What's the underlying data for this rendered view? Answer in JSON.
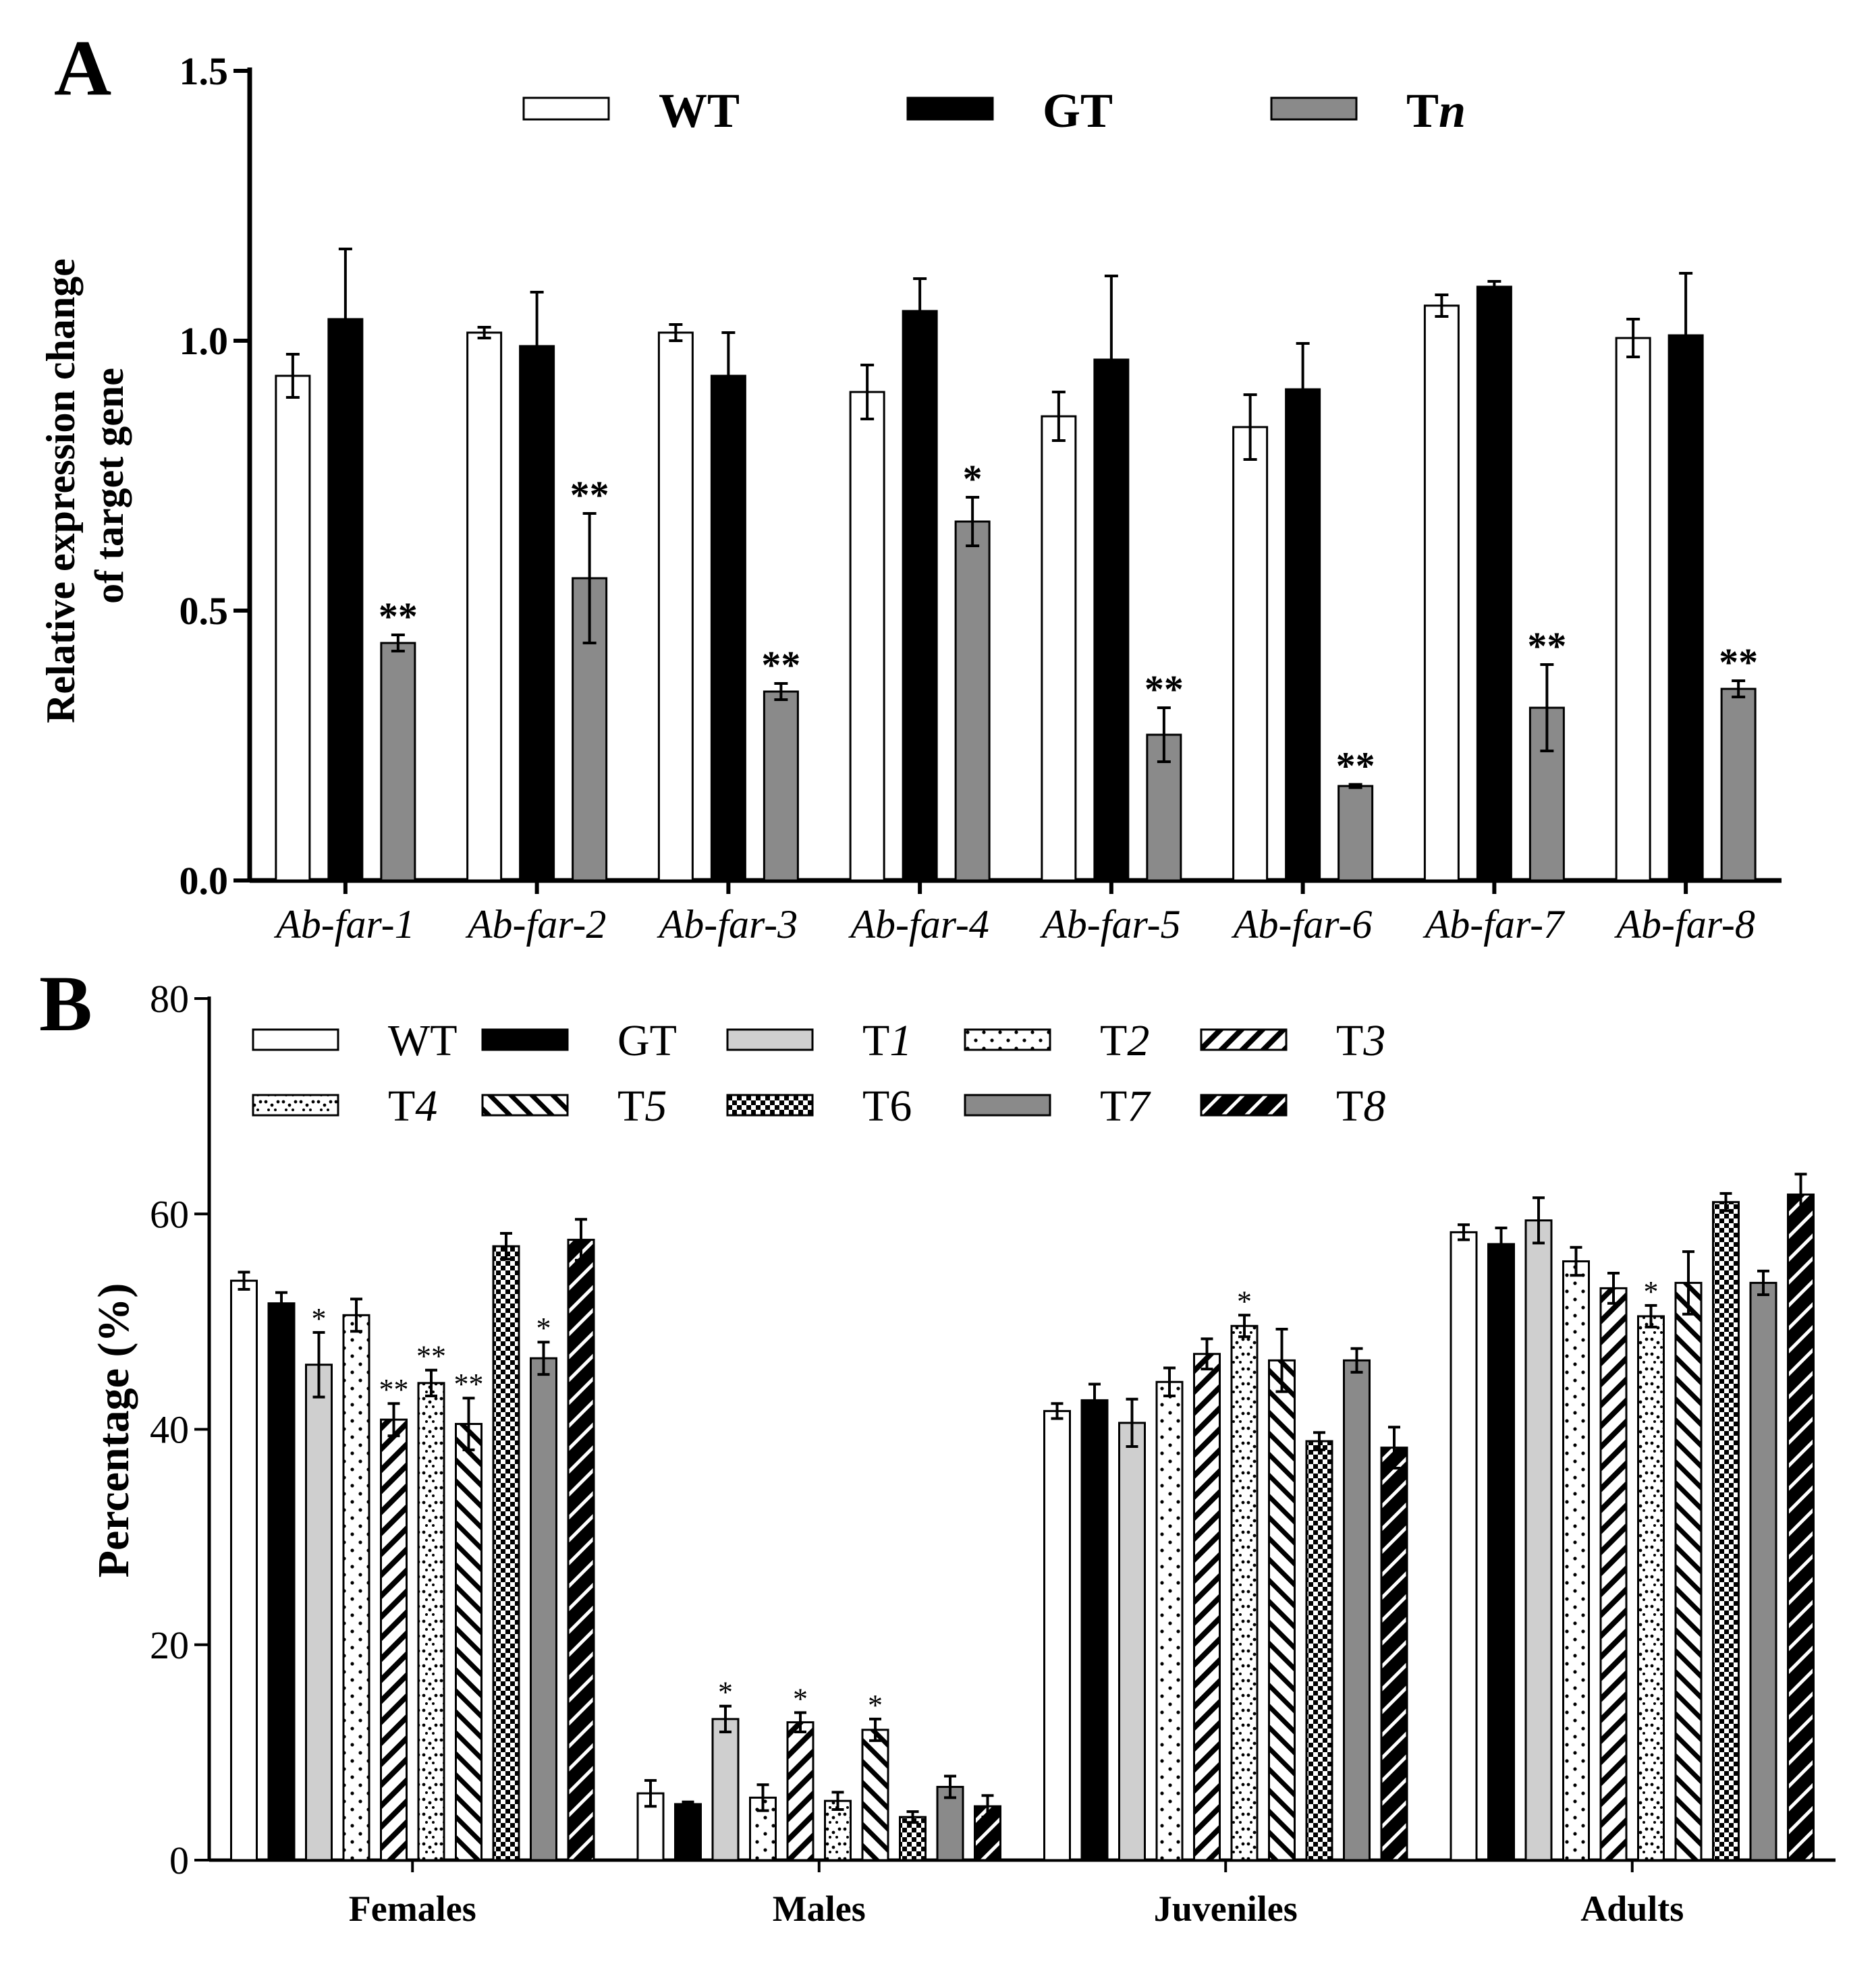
{
  "panel_a": {
    "label": "A",
    "legend": [
      {
        "name": "WT",
        "fill": "white"
      },
      {
        "name": "GT",
        "fill": "black"
      },
      {
        "name_main": "T",
        "name_italic": "n",
        "fill": "gray"
      }
    ]
  },
  "panel_b": {
    "label": "B",
    "legend": [
      {
        "name_main": "WT",
        "name_italic": "",
        "fill": "white"
      },
      {
        "name_main": "GT",
        "name_italic": "",
        "fill": "black"
      },
      {
        "name_main": "T",
        "name_italic": "1",
        "fill": "lightgray"
      },
      {
        "name_main": "T",
        "name_italic": "2",
        "fill": "dots"
      },
      {
        "name_main": "T",
        "name_italic": "3",
        "fill": "hatch-right"
      },
      {
        "name_main": "T",
        "name_italic": "4",
        "fill": "wave-dots"
      },
      {
        "name_main": "T",
        "name_italic": "5",
        "fill": "hatch-left"
      },
      {
        "name_main": "T6",
        "name_italic": "",
        "fill": "checker"
      },
      {
        "name_main": "T",
        "name_italic": "7",
        "fill": "gray"
      },
      {
        "name_main": "T",
        "name_italic": "8",
        "fill": "black-hatch"
      }
    ]
  },
  "colors": {
    "white": "#ffffff",
    "black": "#000000",
    "gray": "#8a8a8a",
    "lightgray": "#cfcfcf"
  },
  "chart_data": [
    {
      "type": "bar",
      "panel": "A",
      "title": "",
      "ylabel_line1": "Relative expression change",
      "ylabel_line2": "of  target gene",
      "xlabel": "",
      "ylim": [
        0,
        1.5
      ],
      "yticks": [
        "0.0",
        "0.5",
        "1.0",
        "1.5"
      ],
      "categories": [
        "Ab-far-1",
        "Ab-far-2",
        "Ab-far-3",
        "Ab-far-4",
        "Ab-far-5",
        "Ab-far-6",
        "Ab-far-7",
        "Ab-far-8"
      ],
      "series": [
        {
          "name": "WT",
          "values": [
            0.935,
            1.015,
            1.015,
            0.905,
            0.86,
            0.84,
            1.065,
            1.005
          ],
          "errors": [
            0.04,
            0.01,
            0.015,
            0.05,
            0.045,
            0.06,
            0.02,
            0.035
          ],
          "marks": [
            "",
            "",
            "",
            "",
            "",
            "",
            "",
            ""
          ]
        },
        {
          "name": "GT",
          "values": [
            1.04,
            0.99,
            0.935,
            1.055,
            0.965,
            0.91,
            1.1,
            1.01
          ],
          "errors": [
            0.13,
            0.1,
            0.08,
            0.06,
            0.155,
            0.085,
            0.01,
            0.115
          ],
          "marks": [
            "",
            "",
            "",
            "",
            "",
            "",
            "",
            ""
          ]
        },
        {
          "name": "Tn",
          "values": [
            0.44,
            0.56,
            0.35,
            0.665,
            0.27,
            0.175,
            0.32,
            0.355
          ],
          "errors": [
            0.015,
            0.12,
            0.015,
            0.045,
            0.05,
            0.003,
            0.08,
            0.015
          ],
          "marks": [
            "**",
            "**",
            "**",
            "*",
            "**",
            "**",
            "**",
            "**"
          ]
        }
      ]
    },
    {
      "type": "bar",
      "panel": "B",
      "title": "",
      "ylabel": "Percentage (%)",
      "xlabel": "",
      "ylim": [
        0,
        80
      ],
      "yticks": [
        "0",
        "20",
        "40",
        "60",
        "80"
      ],
      "categories": [
        "Females",
        "Males",
        "Juveniles",
        "Adults"
      ],
      "series": [
        {
          "name": "WT",
          "values": [
            53.8,
            6.2,
            41.7,
            58.3
          ],
          "errors": [
            0.8,
            1.2,
            0.7,
            0.7
          ],
          "marks": [
            "",
            "",
            "",
            ""
          ]
        },
        {
          "name": "GT",
          "values": [
            51.7,
            5.2,
            42.7,
            57.2
          ],
          "errors": [
            1.0,
            0.2,
            1.5,
            1.5
          ],
          "marks": [
            "",
            "",
            "",
            ""
          ]
        },
        {
          "name": "T1",
          "values": [
            46.0,
            13.1,
            40.6,
            59.4
          ],
          "errors": [
            3.0,
            1.2,
            2.2,
            2.1
          ],
          "marks": [
            "*",
            "*",
            "",
            ""
          ]
        },
        {
          "name": "T2",
          "values": [
            50.6,
            5.8,
            44.4,
            55.6
          ],
          "errors": [
            1.5,
            1.2,
            1.3,
            1.3
          ],
          "marks": [
            "",
            "",
            "",
            ""
          ]
        },
        {
          "name": "T3",
          "values": [
            40.9,
            12.8,
            47.0,
            53.1
          ],
          "errors": [
            1.5,
            0.9,
            1.4,
            1.4
          ],
          "marks": [
            "**",
            "*",
            "",
            ""
          ]
        },
        {
          "name": "T4",
          "values": [
            44.3,
            5.5,
            49.6,
            50.5
          ],
          "errors": [
            1.2,
            0.8,
            1.0,
            1.0
          ],
          "marks": [
            "**",
            "",
            "*",
            "*"
          ]
        },
        {
          "name": "T5",
          "values": [
            40.5,
            12.1,
            46.4,
            53.6
          ],
          "errors": [
            2.4,
            1.0,
            2.9,
            2.9
          ],
          "marks": [
            "**",
            "*",
            "",
            ""
          ]
        },
        {
          "name": "T6",
          "values": [
            57.0,
            4.0,
            38.9,
            61.1
          ],
          "errors": [
            1.2,
            0.5,
            0.8,
            0.8
          ],
          "marks": [
            "",
            "",
            "",
            ""
          ]
        },
        {
          "name": "T7",
          "values": [
            46.6,
            6.8,
            46.4,
            53.6
          ],
          "errors": [
            1.5,
            1.0,
            1.1,
            1.1
          ],
          "marks": [
            "*",
            "",
            "",
            ""
          ]
        },
        {
          "name": "T8",
          "values": [
            57.6,
            5.0,
            38.3,
            61.8
          ],
          "errors": [
            1.9,
            1.0,
            1.9,
            1.9
          ],
          "marks": [
            "",
            "",
            "",
            ""
          ]
        }
      ]
    }
  ]
}
